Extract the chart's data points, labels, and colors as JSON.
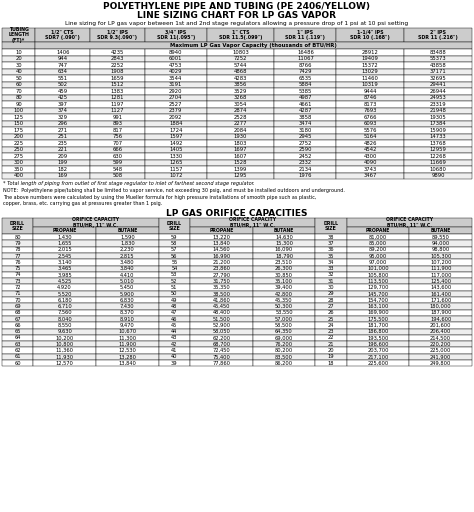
{
  "title1": "POLYETHYLENE PIPE AND TUBING (PE 2406/YELLOW)",
  "title2": "LINE SIZING CHART FOR LP GAS VAPOR",
  "subtitle": "Line sizing for LP gas vapor between 1st and 2nd stage regulators allowing a pressure drop of 1 psi at 10 psi setting",
  "table1_headers": [
    "TUBING\nLENGTH\n(FT)*",
    "1/2\" CTS\nSDR7 (.090\")",
    "1/2\" IPS\nSDR 9.3(.090\")",
    "3/4\" IPS\nSDR 11(.095\")",
    "1\" CTS\nSDR 11.5(.099\")",
    "1\" IPS\nSDR 11 (.119\")",
    "1-1/4\" IPS\nSDR 10 (.168\")",
    "2\" IPS\nSDR 11 (.216\")"
  ],
  "table1_cap": "Maximum LP Gas Vapor Capacity (thousands of BTU/HR)",
  "table1_data": [
    [
      10,
      1406,
      4235,
      8940,
      10803,
      16486,
      28912,
      83488
    ],
    [
      20,
      944,
      2843,
      6001,
      7252,
      11067,
      19409,
      55373
    ],
    [
      30,
      747,
      2252,
      4753,
      5744,
      8766,
      15372,
      43858
    ],
    [
      40,
      634,
      1908,
      4029,
      4868,
      7429,
      13029,
      37171
    ],
    [
      50,
      551,
      1659,
      3544,
      4283,
      6535,
      11460,
      32695
    ],
    [
      60,
      502,
      1512,
      3191,
      3856,
      5884,
      10319,
      29441
    ],
    [
      70,
      459,
      1383,
      2920,
      3529,
      5385,
      9444,
      26944
    ],
    [
      80,
      425,
      1281,
      2704,
      3268,
      4987,
      8746,
      24953
    ],
    [
      90,
      397,
      1197,
      2527,
      3054,
      4661,
      8173,
      23319
    ],
    [
      100,
      374,
      1127,
      2379,
      2874,
      4287,
      7693,
      21948
    ],
    [
      125,
      329,
      991,
      2092,
      2528,
      3858,
      6766,
      19305
    ],
    [
      150,
      296,
      893,
      1884,
      2277,
      3474,
      6093,
      17384
    ],
    [
      175,
      271,
      817,
      1724,
      2084,
      3180,
      5576,
      15909
    ],
    [
      200,
      251,
      756,
      1597,
      1930,
      2945,
      5164,
      14733
    ],
    [
      225,
      235,
      707,
      1492,
      1803,
      2752,
      4826,
      13768
    ],
    [
      250,
      221,
      666,
      1405,
      1697,
      2590,
      4542,
      12959
    ],
    [
      275,
      209,
      630,
      1330,
      1607,
      2452,
      4300,
      12268
    ],
    [
      300,
      199,
      599,
      1265,
      1528,
      2332,
      4090,
      11669
    ],
    [
      350,
      182,
      548,
      1157,
      1399,
      2134,
      3743,
      10680
    ],
    [
      400,
      169,
      508,
      1072,
      1295,
      1976,
      3467,
      9890
    ]
  ],
  "footnote1": "* Total length of piping from outlet of first stage regulator to inlet of farthest second stage regulator.",
  "note1": "NOTE:  Polyethylene pipe/tubing shall be limited to vapor service, not exceeding 30 psig, and must be installed outdoors and underground.",
  "note2": "The above numbers were calculated by using the Mueller formula for high pressure installations of smooth pipe such as plastic, copper, brass, etc. carrying gas at pressures greater than 1 psig.",
  "title3": "LP GAS ORIFICE CAPACITIES",
  "table2_data": [
    [
      80,
      "1,430",
      "1,590",
      59,
      "13,220",
      "14,630",
      38,
      "81,000",
      "89,550"
    ],
    [
      79,
      "1,655",
      "1,830",
      58,
      "13,840",
      "15,300",
      37,
      "85,000",
      "94,000"
    ],
    [
      78,
      "2,015",
      "2,230",
      57,
      "14,560",
      "16,090",
      36,
      "89,200",
      "98,800"
    ],
    [
      77,
      "2,545",
      "2,815",
      56,
      "16,990",
      "18,790",
      35,
      "95,000",
      "105,300"
    ],
    [
      76,
      "3,140",
      "3,480",
      55,
      "21,200",
      "23,510",
      34,
      "97,000",
      "107,200"
    ],
    [
      75,
      "3,465",
      "3,840",
      54,
      "23,860",
      "26,300",
      33,
      "101,000",
      "111,900"
    ],
    [
      74,
      "3,985",
      "4,410",
      53,
      "27,790",
      "30,850",
      32,
      "105,800",
      "117,000"
    ],
    [
      73,
      "4,525",
      "5,010",
      52,
      "31,750",
      "35,100",
      31,
      "113,500",
      "125,400"
    ],
    [
      72,
      "4,920",
      "5,450",
      51,
      "35,350",
      "39,400",
      30,
      "129,700",
      "143,600"
    ],
    [
      71,
      "5,520",
      "5,900",
      50,
      "38,500",
      "42,800",
      29,
      "145,700",
      "161,400"
    ],
    [
      70,
      "6,180",
      "6,830",
      49,
      "41,860",
      "45,350",
      28,
      "154,700",
      "171,600"
    ],
    [
      69,
      "6,710",
      "7,430",
      48,
      "45,450",
      "50,300",
      27,
      "163,100",
      "180,000"
    ],
    [
      68,
      "7,560",
      "8,370",
      47,
      "48,400",
      "53,550",
      26,
      "169,900",
      "187,900"
    ],
    [
      67,
      "8,040",
      "8,910",
      46,
      "51,500",
      "57,000",
      25,
      "175,500",
      "194,600"
    ],
    [
      66,
      "8,550",
      "9,470",
      45,
      "52,900",
      "58,500",
      24,
      "181,700",
      "201,600"
    ],
    [
      65,
      "9,630",
      "10,670",
      44,
      "58,050",
      "64,350",
      23,
      "186,800",
      "206,400"
    ],
    [
      64,
      "10,200",
      "11,300",
      43,
      "62,200",
      "69,000",
      22,
      "193,500",
      "214,500"
    ],
    [
      63,
      "10,800",
      "11,900",
      42,
      "68,700",
      "76,200",
      21,
      "198,600",
      "220,200"
    ],
    [
      62,
      "11,360",
      "12,530",
      41,
      "72,450",
      "80,200",
      20,
      "203,700",
      "225,000"
    ],
    [
      61,
      "11,930",
      "13,280",
      40,
      "75,400",
      "83,500",
      19,
      "217,100",
      "241,900"
    ],
    [
      60,
      "12,570",
      "13,840",
      39,
      "77,860",
      "86,200",
      18,
      "225,600",
      "249,800"
    ]
  ],
  "bg_color": "#ffffff",
  "header_bg": "#cccccc",
  "text_color": "#000000"
}
